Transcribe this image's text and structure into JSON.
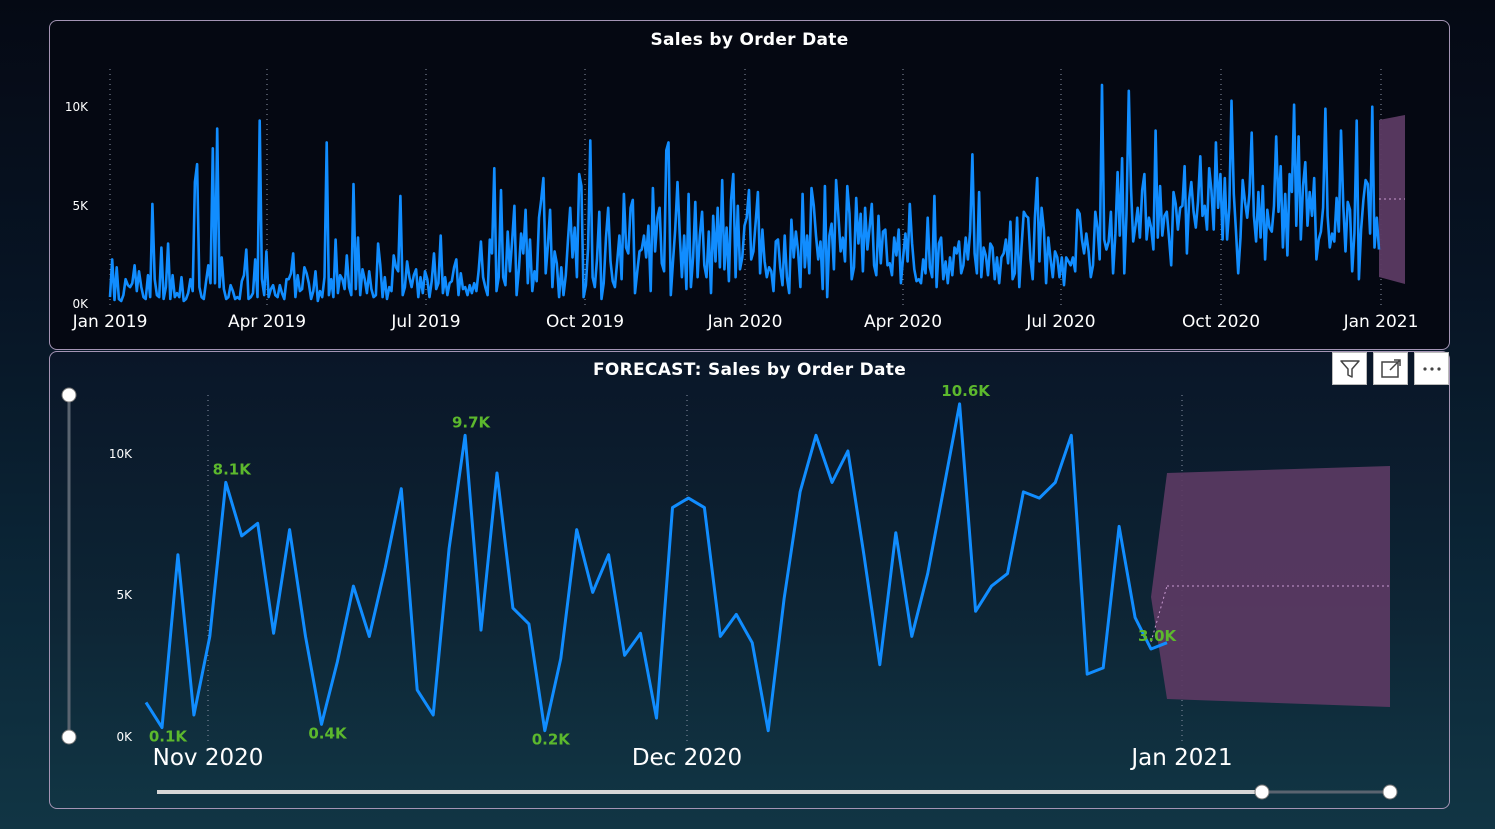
{
  "chart_data": [
    {
      "type": "line",
      "title": "Sales by Order Date",
      "y_ticks": [
        "10K",
        "5K",
        "0K"
      ],
      "x_ticks": [
        "Jan 2019",
        "Apr 2019",
        "Jul 2019",
        "Oct 2019",
        "Jan 2020",
        "Apr 2020",
        "Jul 2020",
        "Oct 2020",
        "Jan 2021"
      ],
      "ylim": [
        0,
        11700
      ],
      "series": [
        {
          "name": "Sales",
          "values": [
            300,
            2200,
            150,
            1800,
            200,
            100,
            400,
            1200,
            900,
            800,
            1000,
            1900,
            600,
            1600,
            800,
            300,
            200,
            1400,
            300,
            5000,
            1200,
            400,
            300,
            2800,
            200,
            800,
            3000,
            200,
            1400,
            300,
            500,
            300,
            1300,
            100,
            200,
            500,
            1200,
            600,
            6100,
            7000,
            800,
            300,
            200,
            1100,
            1900,
            1000,
            7800,
            1000,
            8800,
            800,
            2300,
            700,
            200,
            300,
            900,
            600,
            200,
            300,
            200,
            1100,
            1400,
            2700,
            200,
            300,
            500,
            2200,
            300,
            9200,
            1200,
            400,
            2600,
            300,
            700,
            900,
            400,
            300,
            900,
            500,
            200,
            1200,
            1200,
            1500,
            2500,
            300,
            1400,
            600,
            700,
            1800,
            1500,
            1000,
            200,
            600,
            1600,
            100,
            600,
            300,
            1300,
            8100,
            400,
            1200,
            300,
            3200,
            500,
            1400,
            1200,
            700,
            2400,
            800,
            400,
            6000,
            700,
            3300,
            400,
            1700,
            1200,
            500,
            1600,
            700,
            300,
            400,
            3000,
            1900,
            300,
            1300,
            200,
            800,
            600,
            2400,
            1800,
            1600,
            5400,
            400,
            800,
            2100,
            1300,
            800,
            1400,
            1700,
            300,
            1300,
            500,
            1600,
            1200,
            300,
            1100,
            2500,
            700,
            1000,
            3400,
            500,
            1300,
            400,
            1000,
            1100,
            1800,
            2200,
            400,
            1500,
            700,
            800,
            400,
            900,
            500,
            1000,
            600,
            1600,
            3100,
            1300,
            800,
            400,
            3200,
            2500,
            6800,
            600,
            1300,
            5700,
            1300,
            900,
            3600,
            1600,
            3100,
            4900,
            400,
            1700,
            3500,
            2500,
            4700,
            1000,
            3200,
            600,
            1600,
            1100,
            4300,
            5200,
            6300,
            1500,
            2900,
            4700,
            800,
            2600,
            2000,
            300,
            1800,
            400,
            1400,
            3200,
            4800,
            2300,
            3800,
            1300,
            6500,
            5900,
            300,
            900,
            2800,
            8200,
            1300,
            800,
            2200,
            4600,
            200,
            1000,
            3300,
            4800,
            2100,
            1100,
            800,
            2100,
            3400,
            1200,
            5500,
            2800,
            2500,
            4800,
            5200,
            500,
            1600,
            2600,
            2700,
            3400,
            2300,
            3900,
            600,
            5800,
            2600,
            4300,
            4800,
            2000,
            1600,
            7700,
            8100,
            400,
            2100,
            3700,
            6100,
            3500,
            1300,
            3400,
            700,
            5500,
            800,
            2300,
            5100,
            1300,
            3400,
            4600,
            1900,
            1300,
            3600,
            500,
            4400,
            2100,
            4800,
            1800,
            6200,
            1700,
            3800,
            1100,
            5200,
            6500,
            1300,
            4900,
            1700,
            2300,
            3900,
            4300,
            5700,
            2200,
            2600,
            4100,
            5600,
            1500,
            3700,
            2100,
            1300,
            1800,
            1600,
            600,
            3100,
            3200,
            1800,
            900,
            3400,
            1300,
            500,
            4200,
            2300,
            3600,
            2600,
            800,
            5500,
            1800,
            3400,
            1500,
            5800,
            4900,
            3400,
            2200,
            3100,
            700,
            5900,
            300,
            3400,
            4000,
            1700,
            6200,
            4500,
            2600,
            3300,
            2100,
            5900,
            4500,
            1200,
            1800,
            5300,
            3000,
            4500,
            1600,
            4800,
            2700,
            3800,
            5000,
            1900,
            1400,
            4400,
            2000,
            3600,
            3700,
            1900,
            2000,
            1400,
            3300,
            2400,
            3700,
            1000,
            2300,
            3500,
            2100,
            5000,
            3000,
            1700,
            1100,
            1200,
            1000,
            2200,
            1500,
            4300,
            1800,
            1300,
            5400,
            800,
            3000,
            3300,
            1200,
            2100,
            1000,
            2300,
            1400,
            2800,
            2500,
            3100,
            1500,
            1900,
            3300,
            2200,
            3600,
            7500,
            2500,
            1500,
            5600,
            1300,
            2800,
            2400,
            1400,
            3000,
            2800,
            1200,
            2300,
            1000,
            2300,
            2500,
            3200,
            2000,
            4100,
            1200,
            1500,
            4300,
            800,
            2800,
            4600,
            4400,
            4300,
            2200,
            1200,
            4300,
            6300,
            2100,
            4800,
            3700,
            1000,
            3300,
            2200,
            1300,
            2600,
            2300,
            1300,
            2300,
            900,
            2300,
            2100,
            1900,
            2300,
            1600,
            4700,
            4500,
            3200,
            2500,
            3500,
            2600,
            1300,
            1900,
            4600,
            3800,
            2200,
            11000,
            3200,
            2700,
            3100,
            4600,
            1500,
            3500,
            6600,
            3400,
            7300,
            1500,
            4500,
            10700,
            5800,
            3100,
            3900,
            4800,
            3300,
            5700,
            6500,
            3200,
            4300,
            3800,
            2700,
            8700,
            3300,
            5900,
            3400,
            4400,
            4600,
            3300,
            1900,
            5600,
            5000,
            3700,
            4800,
            4900,
            6900,
            2500,
            5200,
            6100,
            4600,
            3800,
            5100,
            7400,
            4400,
            4900,
            3700,
            6800,
            5700,
            3700,
            8100,
            4800,
            6500,
            3200,
            6300,
            3200,
            4800,
            10200,
            5500,
            3600,
            1500,
            3300,
            6200,
            5100,
            4300,
            5500,
            8600,
            4400,
            3100,
            5600,
            3300,
            5900,
            2200,
            4700,
            3800,
            3600,
            4900,
            8400,
            4600,
            6900,
            2800,
            5500,
            2400,
            6500,
            5600,
            10000,
            3900,
            8400,
            3200,
            5900,
            7100,
            3900,
            5600,
            4400,
            6300,
            2200,
            3200,
            3600,
            4800,
            9800,
            4400,
            2800,
            3500,
            3100,
            5300,
            3600,
            8700,
            4900,
            2600,
            5100,
            4700,
            1600,
            3500,
            9200,
            1200,
            3700,
            5200,
            6200,
            6000,
            3500,
            9900,
            2800,
            4300,
            2700
          ]
        }
      ],
      "annotations": []
    },
    {
      "type": "line",
      "title": "FORECAST: Sales by Order Date",
      "y_ticks": [
        "10K",
        "5K",
        "0K"
      ],
      "x_ticks": [
        "Nov 2020",
        "Dec 2020",
        "Jan 2021"
      ],
      "ylim": [
        0,
        10500
      ],
      "series": [
        {
          "name": "Sales",
          "values": [
            1100,
            300,
            5800,
            700,
            3200,
            8100,
            6400,
            6800,
            3300,
            6600,
            3200,
            400,
            2400,
            4800,
            3200,
            5400,
            7900,
            1500,
            700,
            6000,
            9600,
            3400,
            8400,
            4100,
            3600,
            200,
            2500,
            6600,
            4600,
            5800,
            2600,
            3300,
            600,
            7300,
            7600,
            7300,
            3200,
            3900,
            3000,
            200,
            4400,
            7800,
            9600,
            8100,
            9100,
            5800,
            2300,
            6500,
            3200,
            5200,
            7900,
            10600,
            4000,
            4800,
            5200,
            7800,
            7600,
            8100,
            9600,
            2000,
            2200,
            6700,
            3800,
            2800,
            3000
          ]
        }
      ],
      "forecast": {
        "upper": [
          9400,
          9500
        ],
        "mid": [
          5500,
          5500
        ],
        "lower": [
          1300,
          1000
        ]
      },
      "annotations": [
        "0.1K",
        "8.1K",
        "0.4K",
        "9.7K",
        "0.2K",
        "10.6K",
        "3.0K"
      ]
    }
  ]
}
